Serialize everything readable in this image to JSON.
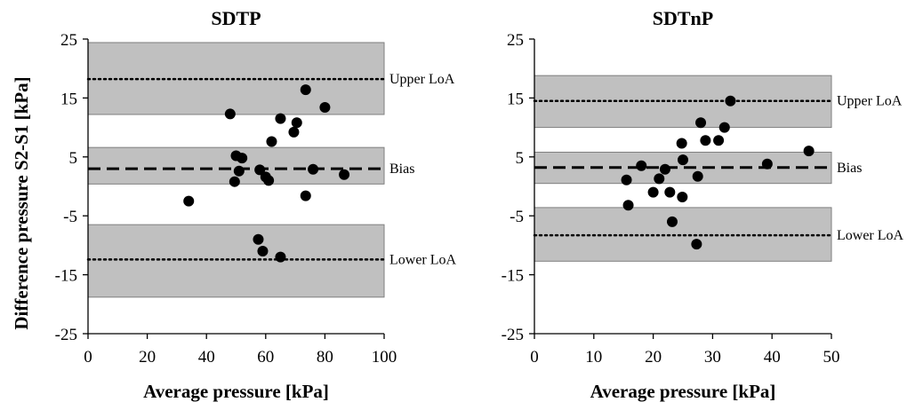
{
  "figure": {
    "ylabel": "Difference pressure S2-S1 [kPa]"
  },
  "chart_data": [
    {
      "type": "scatter",
      "title": "SDTP",
      "xlabel": "Average pressure [kPa]",
      "ylabel": "Difference pressure S2-S1 [kPa]",
      "xlim": [
        0,
        100
      ],
      "ylim": [
        -25,
        25
      ],
      "x_ticks": [
        "0",
        "20",
        "40",
        "60",
        "80",
        "100"
      ],
      "y_ticks": [
        "25",
        "15",
        "5",
        "-5",
        "-15",
        "-25"
      ],
      "x_tick_values": [
        0,
        20,
        40,
        60,
        80,
        100
      ],
      "y_tick_values": [
        25,
        15,
        5,
        -5,
        -15,
        -25
      ],
      "lines": {
        "upper_loa": {
          "label": "Upper LoA",
          "value": 18.2
        },
        "bias": {
          "label": "Bias",
          "value": 3.0
        },
        "lower_loa": {
          "label": "Lower LoA",
          "value": -12.4
        }
      },
      "bands": [
        [
          12.2,
          24.4
        ],
        [
          0.4,
          6.6
        ],
        [
          -18.8,
          -6.5
        ]
      ],
      "points": [
        {
          "x": 34,
          "y": -2.5
        },
        {
          "x": 48,
          "y": 12.3
        },
        {
          "x": 49.5,
          "y": 0.8
        },
        {
          "x": 50,
          "y": 5.2
        },
        {
          "x": 51,
          "y": 2.6
        },
        {
          "x": 52,
          "y": 4.8
        },
        {
          "x": 57.5,
          "y": -9.0
        },
        {
          "x": 58,
          "y": 2.8
        },
        {
          "x": 59,
          "y": -11.0
        },
        {
          "x": 60,
          "y": 1.6
        },
        {
          "x": 61,
          "y": 1.0
        },
        {
          "x": 62,
          "y": 7.6
        },
        {
          "x": 65,
          "y": 11.5
        },
        {
          "x": 65,
          "y": -12.0
        },
        {
          "x": 69.5,
          "y": 9.2
        },
        {
          "x": 70.5,
          "y": 10.8
        },
        {
          "x": 73.5,
          "y": 16.4
        },
        {
          "x": 73.5,
          "y": -1.6
        },
        {
          "x": 76,
          "y": 2.9
        },
        {
          "x": 80,
          "y": 13.4
        },
        {
          "x": 86.5,
          "y": 2.0
        }
      ]
    },
    {
      "type": "scatter",
      "title": "SDTnP",
      "xlabel": "Average pressure [kPa]",
      "ylabel": "Difference pressure S2-S1 [kPa]",
      "xlim": [
        0,
        50
      ],
      "ylim": [
        -25,
        25
      ],
      "x_ticks": [
        "0",
        "10",
        "20",
        "30",
        "40",
        "50"
      ],
      "y_ticks": [
        "25",
        "15",
        "5",
        "-5",
        "-15",
        "-25"
      ],
      "x_tick_values": [
        0,
        10,
        20,
        30,
        40,
        50
      ],
      "y_tick_values": [
        25,
        15,
        5,
        -5,
        -15,
        -25
      ],
      "lines": {
        "upper_loa": {
          "label": "Upper LoA",
          "value": 14.5
        },
        "bias": {
          "label": "Bias",
          "value": 3.2
        },
        "lower_loa": {
          "label": "Lower LoA",
          "value": -8.3
        }
      },
      "bands": [
        [
          10.0,
          18.8
        ],
        [
          0.5,
          5.8
        ],
        [
          -12.7,
          -3.6
        ]
      ],
      "points": [
        {
          "x": 15.5,
          "y": 1.1
        },
        {
          "x": 15.8,
          "y": -3.2
        },
        {
          "x": 18.0,
          "y": 3.5
        },
        {
          "x": 20.0,
          "y": -1.0
        },
        {
          "x": 21.0,
          "y": 1.3
        },
        {
          "x": 22.0,
          "y": 2.9
        },
        {
          "x": 22.8,
          "y": -1.0
        },
        {
          "x": 23.2,
          "y": -6.0
        },
        {
          "x": 24.8,
          "y": 7.3
        },
        {
          "x": 24.9,
          "y": -1.8
        },
        {
          "x": 25.0,
          "y": 4.5
        },
        {
          "x": 27.3,
          "y": -9.8
        },
        {
          "x": 27.5,
          "y": 1.7
        },
        {
          "x": 28.0,
          "y": 10.8
        },
        {
          "x": 28.8,
          "y": 7.8
        },
        {
          "x": 31.0,
          "y": 7.8
        },
        {
          "x": 32.0,
          "y": 10.0
        },
        {
          "x": 33.0,
          "y": 14.5
        },
        {
          "x": 39.2,
          "y": 3.8
        },
        {
          "x": 46.2,
          "y": 6.0
        }
      ]
    }
  ]
}
